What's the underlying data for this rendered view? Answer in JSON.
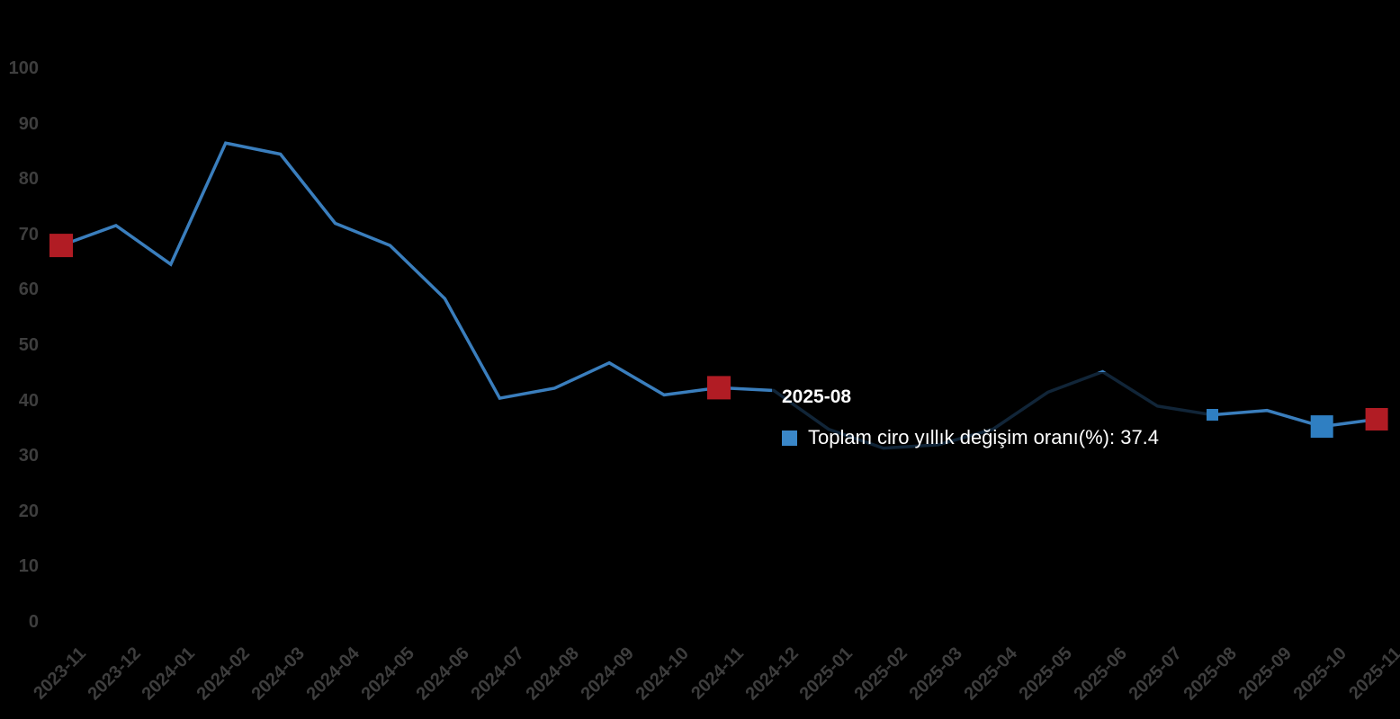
{
  "chart_data": {
    "type": "line",
    "title": "",
    "xlabel": "",
    "ylabel": "",
    "categories": [
      "2023-11",
      "2023-12",
      "2024-01",
      "2024-02",
      "2024-03",
      "2024-04",
      "2024-05",
      "2024-06",
      "2024-07",
      "2024-08",
      "2024-09",
      "2024-10",
      "2024-11",
      "2024-12",
      "2025-01",
      "2025-02",
      "2025-03",
      "2025-04",
      "2025-05",
      "2025-06",
      "2025-07",
      "2025-08",
      "2025-09",
      "2025-10",
      "2025-11"
    ],
    "series": [
      {
        "name": "Toplam ciro yıllık değişim oranı(%)",
        "color": "#3a7ebd",
        "values": [
          68.0,
          71.6,
          64.6,
          86.5,
          84.5,
          72.0,
          68.0,
          58.4,
          40.4,
          42.2,
          46.8,
          41.0,
          42.3,
          41.8,
          34.8,
          31.4,
          32.0,
          34.8,
          41.5,
          45.2,
          39.0,
          37.4,
          38.2,
          35.3,
          36.6
        ]
      }
    ],
    "ylim": [
      0,
      100
    ],
    "y_ticks": [
      0,
      10,
      20,
      30,
      40,
      50,
      60,
      70,
      80,
      90,
      100
    ],
    "grid": false,
    "legend_position": "none",
    "background_color": "#000000",
    "axis_label_color": "#3e3e3e",
    "point_markers": [
      {
        "category": "2023-11",
        "index": 0,
        "shape": "square",
        "color": "#b11c24",
        "size": 26
      },
      {
        "category": "2024-11",
        "index": 12,
        "shape": "square",
        "color": "#b11c24",
        "size": 26
      },
      {
        "category": "2025-10",
        "index": 23,
        "shape": "square",
        "color": "#2f7fc2",
        "size": 25
      },
      {
        "category": "2025-11",
        "index": 24,
        "shape": "square",
        "color": "#b11c24",
        "size": 25
      }
    ],
    "hover_marker": {
      "category": "2025-08",
      "index": 21,
      "shape": "square",
      "color": "#2f7fc2",
      "size": 13
    }
  },
  "tooltip": {
    "title": "2025-08",
    "series_name": "Toplam ciro yıllık değişim oranı(%)",
    "value": "37.4",
    "text": "Toplam ciro yıllık değişim oranı(%): 37.4",
    "marker_color": "#3a87c8"
  }
}
